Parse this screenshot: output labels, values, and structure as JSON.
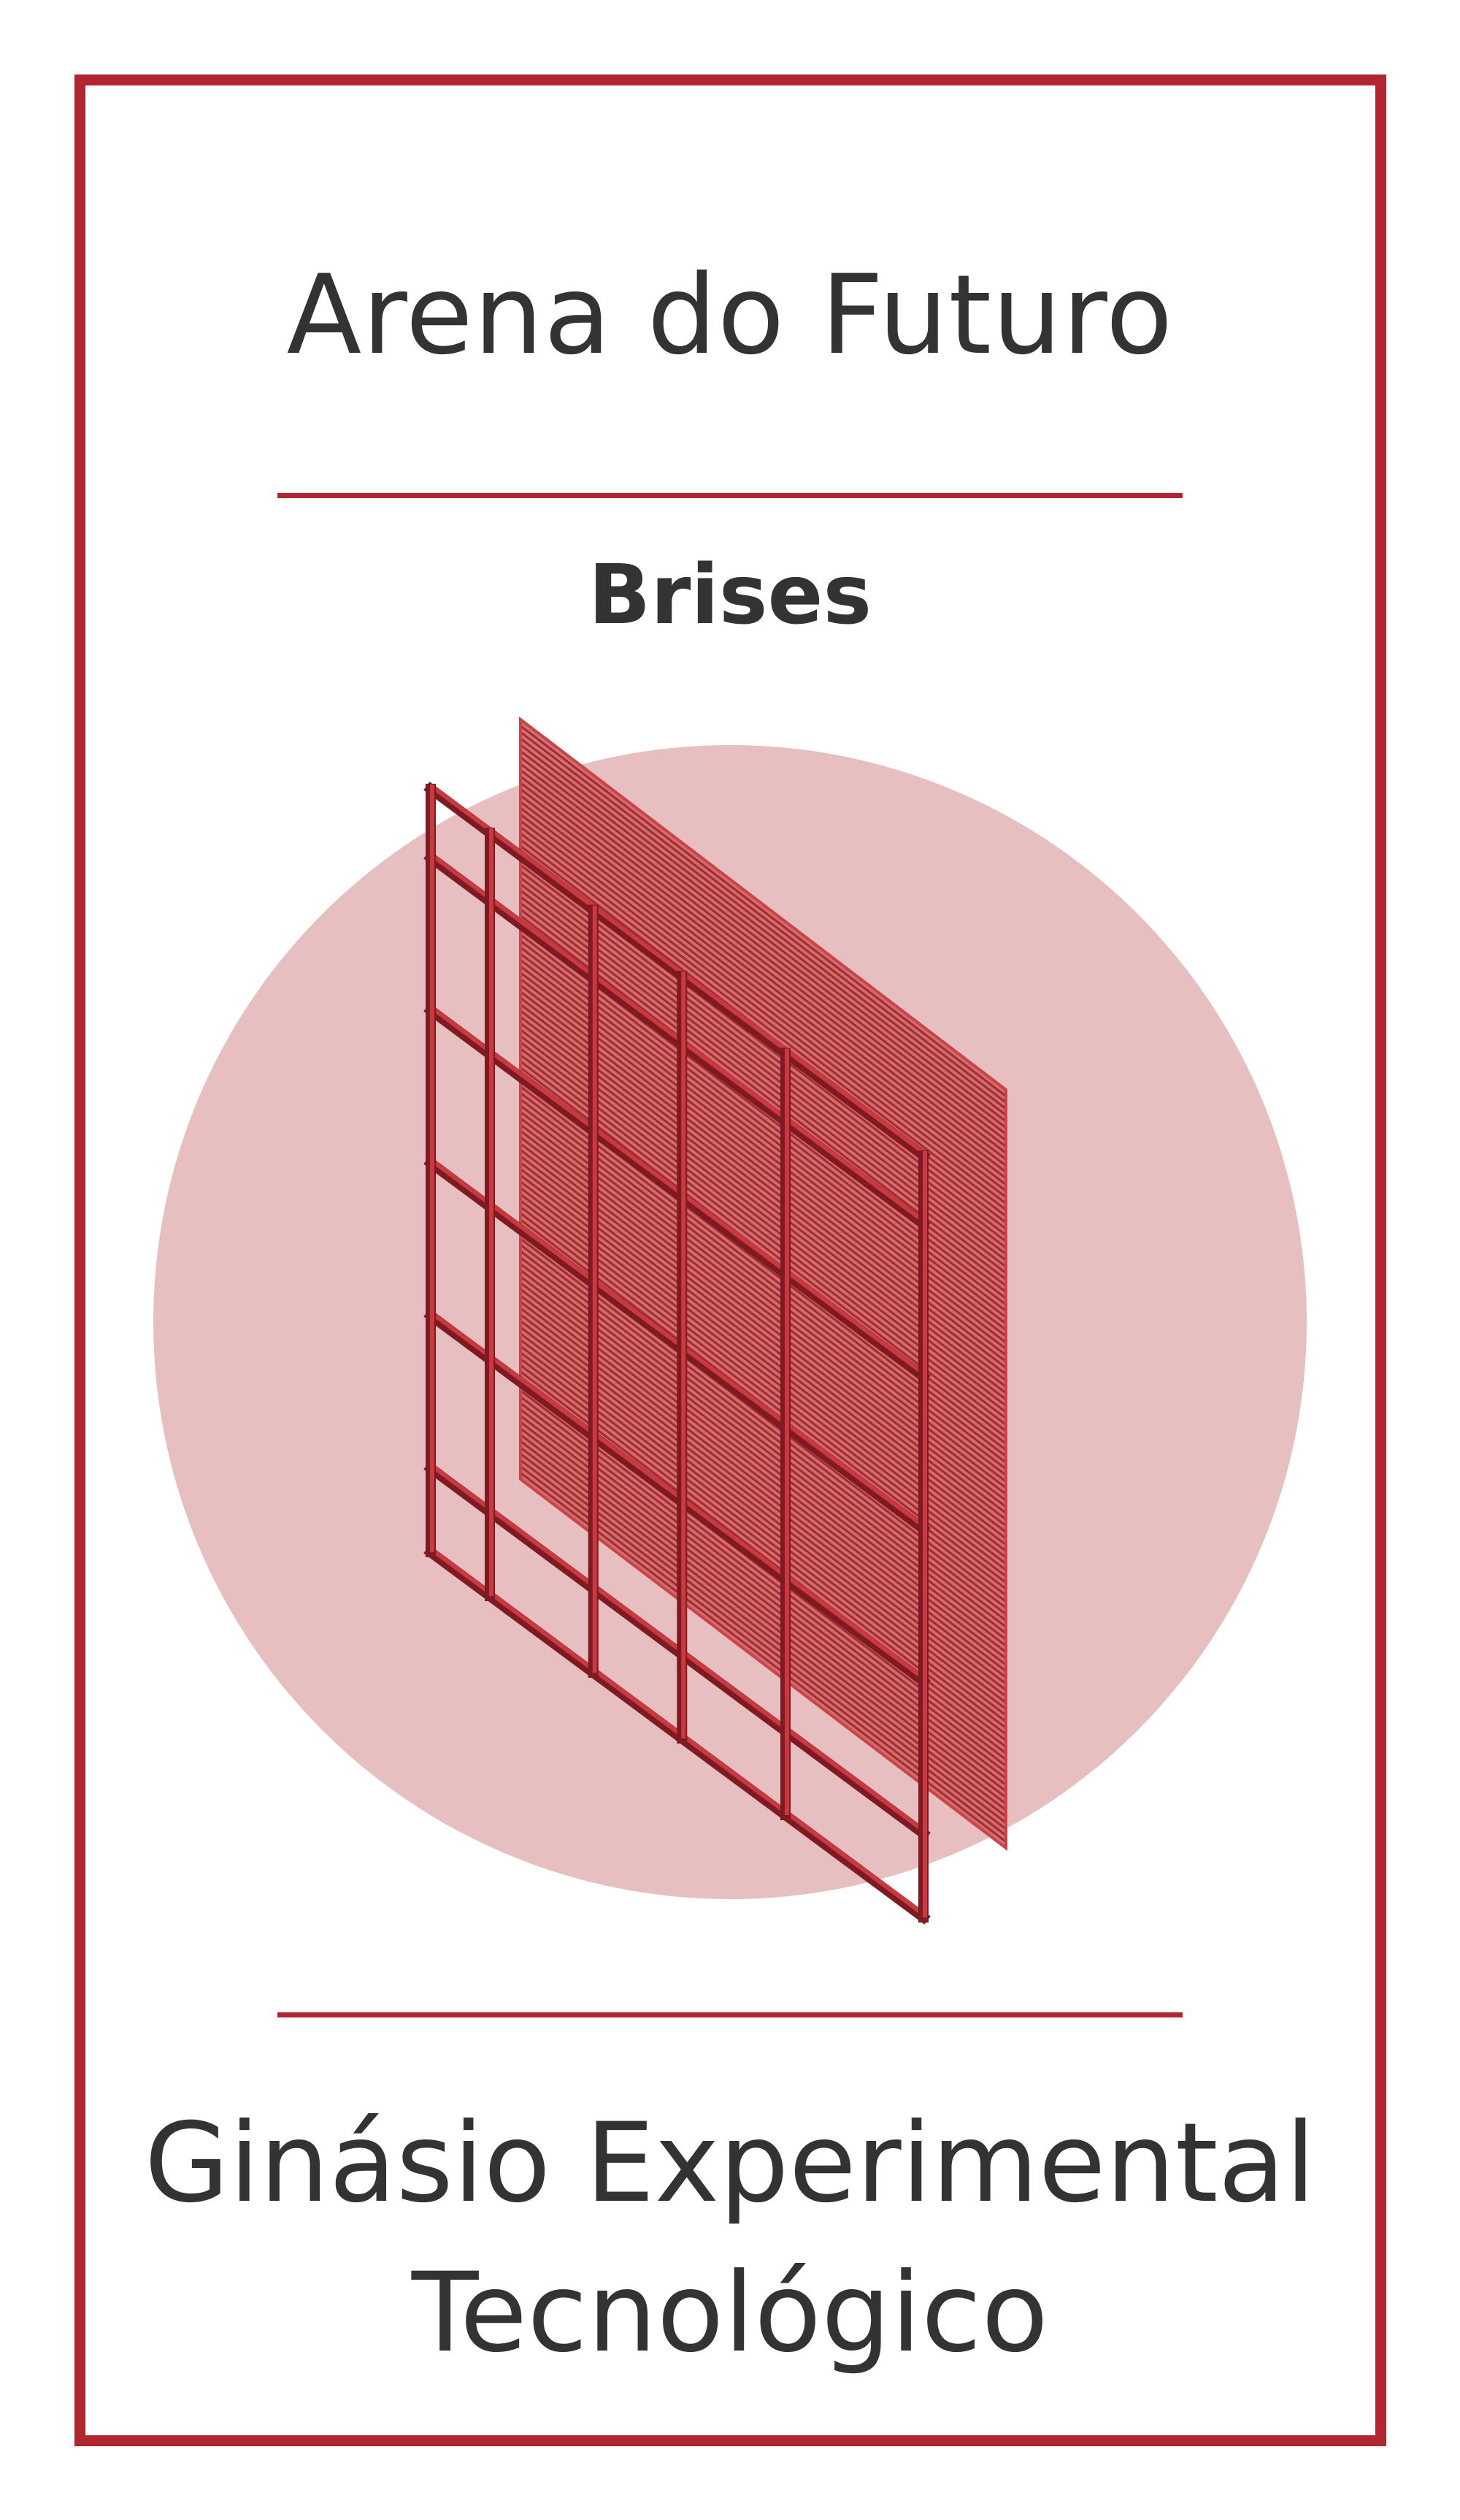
{
  "title": "Arena do Futuro",
  "subtitle": "Brises",
  "footer": {
    "line1": "Ginásio Experimental",
    "line2": "Tecnológico"
  },
  "colors": {
    "accent": "#b2262f",
    "circle": "#e7bfc1",
    "louver": "#d96a6c",
    "louver_line": "#9e2d33",
    "frame_dark": "#7e1a21",
    "text": "#333333"
  },
  "illustration": {
    "icon": "louver-panel-isometric-icon"
  }
}
